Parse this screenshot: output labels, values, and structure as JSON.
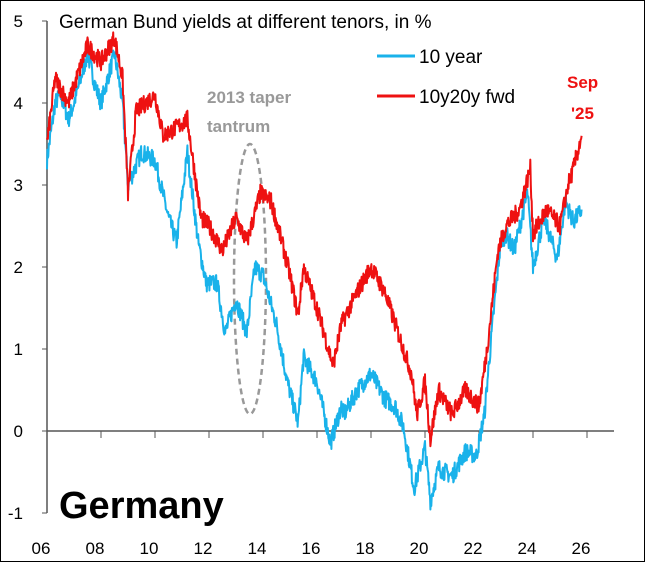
{
  "chart_data": {
    "type": "line",
    "title": "German Bund yields at different tenors, in %",
    "xlabel": "",
    "ylabel": "",
    "xlim": [
      2006,
      2027
    ],
    "ylim": [
      -1,
      5
    ],
    "xticks": [
      "06",
      "08",
      "10",
      "12",
      "14",
      "16",
      "18",
      "20",
      "22",
      "24",
      "26"
    ],
    "yticks": [
      "5",
      "4",
      "3",
      "2",
      "1",
      "0",
      "-1"
    ],
    "watermark_label": "Germany",
    "annotations": {
      "taper_line1": "2013 taper",
      "taper_line2": "tantrum",
      "sep_line1": "Sep",
      "sep_line2": "'25"
    },
    "series": [
      {
        "name": "10 year",
        "color": "#19b2ea",
        "points": [
          [
            2006.0,
            3.3
          ],
          [
            2006.3,
            4.0
          ],
          [
            2006.5,
            4.1
          ],
          [
            2006.8,
            3.8
          ],
          [
            2007.0,
            4.0
          ],
          [
            2007.5,
            4.6
          ],
          [
            2007.8,
            4.2
          ],
          [
            2008.0,
            4.0
          ],
          [
            2008.5,
            4.6
          ],
          [
            2008.8,
            4.0
          ],
          [
            2009.0,
            3.0
          ],
          [
            2009.5,
            3.4
          ],
          [
            2010.0,
            3.3
          ],
          [
            2010.5,
            2.6
          ],
          [
            2010.8,
            2.3
          ],
          [
            2011.2,
            3.4
          ],
          [
            2011.6,
            2.3
          ],
          [
            2011.9,
            1.8
          ],
          [
            2012.3,
            1.8
          ],
          [
            2012.6,
            1.2
          ],
          [
            2013.0,
            1.6
          ],
          [
            2013.4,
            1.2
          ],
          [
            2013.7,
            2.0
          ],
          [
            2014.0,
            1.9
          ],
          [
            2014.5,
            1.3
          ],
          [
            2014.9,
            0.6
          ],
          [
            2015.3,
            0.1
          ],
          [
            2015.5,
            0.9
          ],
          [
            2016.0,
            0.6
          ],
          [
            2016.5,
            -0.15
          ],
          [
            2016.9,
            0.3
          ],
          [
            2017.0,
            0.2
          ],
          [
            2017.5,
            0.5
          ],
          [
            2018.0,
            0.7
          ],
          [
            2018.5,
            0.4
          ],
          [
            2018.9,
            0.3
          ],
          [
            2019.2,
            0.05
          ],
          [
            2019.6,
            -0.7
          ],
          [
            2020.0,
            -0.2
          ],
          [
            2020.2,
            -0.85
          ],
          [
            2020.5,
            -0.45
          ],
          [
            2021.0,
            -0.55
          ],
          [
            2021.5,
            -0.25
          ],
          [
            2021.9,
            -0.3
          ],
          [
            2022.2,
            0.2
          ],
          [
            2022.5,
            1.3
          ],
          [
            2022.8,
            2.3
          ],
          [
            2023.0,
            2.4
          ],
          [
            2023.3,
            2.2
          ],
          [
            2023.8,
            2.9
          ],
          [
            2024.0,
            2.0
          ],
          [
            2024.4,
            2.6
          ],
          [
            2024.9,
            2.1
          ],
          [
            2025.2,
            2.8
          ],
          [
            2025.5,
            2.55
          ],
          [
            2025.8,
            2.7
          ]
        ]
      },
      {
        "name": "10y20y fwd",
        "color": "#ee1111",
        "points": [
          [
            2006.0,
            3.5
          ],
          [
            2006.3,
            4.3
          ],
          [
            2006.8,
            4.0
          ],
          [
            2007.0,
            4.2
          ],
          [
            2007.5,
            4.7
          ],
          [
            2008.0,
            4.5
          ],
          [
            2008.5,
            4.8
          ],
          [
            2008.8,
            4.3
          ],
          [
            2009.0,
            2.9
          ],
          [
            2009.3,
            3.9
          ],
          [
            2010.0,
            4.1
          ],
          [
            2010.3,
            3.6
          ],
          [
            2010.8,
            3.7
          ],
          [
            2011.2,
            3.8
          ],
          [
            2011.7,
            2.6
          ],
          [
            2012.0,
            2.5
          ],
          [
            2012.5,
            2.2
          ],
          [
            2013.0,
            2.6
          ],
          [
            2013.4,
            2.3
          ],
          [
            2013.9,
            2.9
          ],
          [
            2014.3,
            2.8
          ],
          [
            2014.7,
            2.3
          ],
          [
            2015.0,
            1.9
          ],
          [
            2015.3,
            1.4
          ],
          [
            2015.5,
            2.0
          ],
          [
            2016.0,
            1.5
          ],
          [
            2016.6,
            0.8
          ],
          [
            2016.9,
            1.3
          ],
          [
            2017.5,
            1.7
          ],
          [
            2018.0,
            2.0
          ],
          [
            2018.5,
            1.7
          ],
          [
            2019.0,
            1.2
          ],
          [
            2019.5,
            0.7
          ],
          [
            2019.7,
            0.2
          ],
          [
            2020.0,
            0.6
          ],
          [
            2020.2,
            -0.1
          ],
          [
            2020.5,
            0.5
          ],
          [
            2021.0,
            0.2
          ],
          [
            2021.5,
            0.5
          ],
          [
            2022.0,
            0.3
          ],
          [
            2022.3,
            1.0
          ],
          [
            2022.7,
            2.2
          ],
          [
            2023.0,
            2.5
          ],
          [
            2023.5,
            2.7
          ],
          [
            2023.9,
            3.2
          ],
          [
            2024.0,
            2.4
          ],
          [
            2024.5,
            2.7
          ],
          [
            2025.0,
            2.5
          ],
          [
            2025.3,
            3.0
          ],
          [
            2025.5,
            3.2
          ],
          [
            2025.8,
            3.6
          ]
        ]
      }
    ]
  }
}
